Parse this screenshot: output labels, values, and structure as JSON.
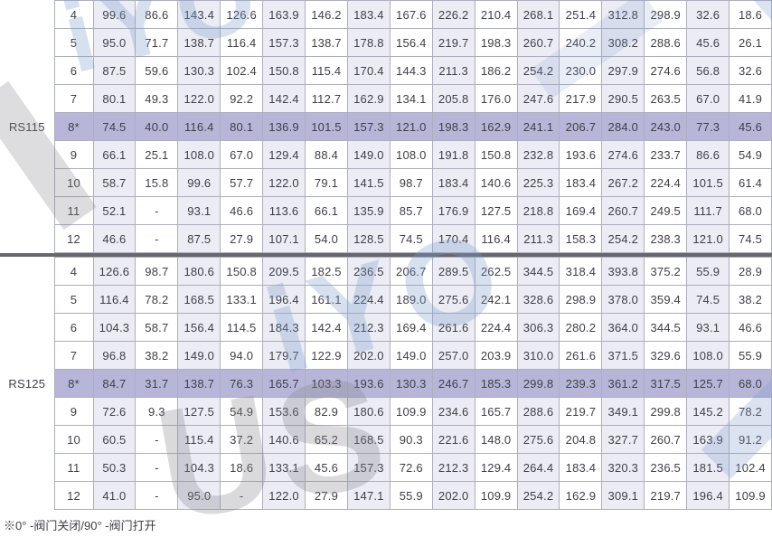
{
  "colors": {
    "border": "#adaebe",
    "shaded": "#ebecf4",
    "highlight": "#b7b6d9",
    "divider": "#67676c",
    "text": "#3f3f47",
    "wmBlue": "#7d9ccd",
    "wmGray": "#86868d"
  },
  "watermark": {
    "top_left": "iYO",
    "center": "iYO",
    "bottom_left": "US"
  },
  "footnote": {
    "text": "※0° -阀门关闭/90° -阀门打开"
  },
  "table": {
    "sections": [
      {
        "label": "RS115",
        "rows": [
          {
            "size": "4",
            "highlight": false,
            "values": [
              "99.6",
              "86.6",
              "143.4",
              "126.6",
              "163.9",
              "146.2",
              "183.4",
              "167.6",
              "226.2",
              "210.4",
              "268.1",
              "251.4",
              "312.8",
              "298.9",
              "32.6",
              "18.6"
            ]
          },
          {
            "size": "5",
            "highlight": false,
            "values": [
              "95.0",
              "71.7",
              "138.7",
              "116.4",
              "157.3",
              "138.7",
              "178.8",
              "156.4",
              "219.7",
              "198.3",
              "260.7",
              "240.2",
              "308.2",
              "288.6",
              "45.6",
              "26.1"
            ]
          },
          {
            "size": "6",
            "highlight": false,
            "values": [
              "87.5",
              "59.6",
              "130.3",
              "102.4",
              "150.8",
              "115.4",
              "170.4",
              "144.3",
              "211.3",
              "186.2",
              "254.2",
              "230.0",
              "297.9",
              "274.6",
              "56.8",
              "32.6"
            ]
          },
          {
            "size": "7",
            "highlight": false,
            "values": [
              "80.1",
              "49.3",
              "122.0",
              "92.2",
              "142.4",
              "112.7",
              "162.9",
              "134.1",
              "205.8",
              "176.0",
              "247.6",
              "217.9",
              "290.5",
              "263.5",
              "67.0",
              "41.9"
            ]
          },
          {
            "size": "8*",
            "highlight": true,
            "values": [
              "74.5",
              "40.0",
              "116.4",
              "80.1",
              "136.9",
              "101.5",
              "157.3",
              "121.0",
              "198.3",
              "162.9",
              "241.1",
              "206.7",
              "284.0",
              "243.0",
              "77.3",
              "45.6"
            ]
          },
          {
            "size": "9",
            "highlight": false,
            "values": [
              "66.1",
              "25.1",
              "108.0",
              "67.0",
              "129.4",
              "88.4",
              "149.0",
              "108.0",
              "191.8",
              "150.8",
              "232.8",
              "193.6",
              "274.6",
              "233.7",
              "86.6",
              "54.9"
            ]
          },
          {
            "size": "10",
            "highlight": false,
            "values": [
              "58.7",
              "15.8",
              "99.6",
              "57.7",
              "122.0",
              "79.1",
              "141.5",
              "98.7",
              "183.4",
              "140.6",
              "225.3",
              "183.4",
              "267.2",
              "224.4",
              "101.5",
              "61.4"
            ]
          },
          {
            "size": "11",
            "highlight": false,
            "values": [
              "52.1",
              "-",
              "93.1",
              "46.6",
              "113.6",
              "66.1",
              "135.9",
              "85.7",
              "176.9",
              "127.5",
              "218.8",
              "169.4",
              "260.7",
              "249.5",
              "111.7",
              "68.0"
            ]
          },
          {
            "size": "12",
            "highlight": false,
            "values": [
              "46.6",
              "-",
              "87.5",
              "27.9",
              "107.1",
              "54.0",
              "128.5",
              "74.5",
              "170.4",
              "116.4",
              "211.3",
              "158.3",
              "254.2",
              "238.3",
              "121.0",
              "74.5"
            ]
          }
        ]
      },
      {
        "label": "RS125",
        "rows": [
          {
            "size": "4",
            "highlight": false,
            "values": [
              "126.6",
              "98.7",
              "180.6",
              "150.8",
              "209.5",
              "182.5",
              "236.5",
              "206.7",
              "289.5",
              "262.5",
              "344.5",
              "318.4",
              "393.8",
              "375.2",
              "55.9",
              "28.9"
            ]
          },
          {
            "size": "5",
            "highlight": false,
            "values": [
              "116.4",
              "78.2",
              "168.5",
              "133.1",
              "196.4",
              "161.1",
              "224.4",
              "189.0",
              "275.6",
              "242.1",
              "328.6",
              "298.9",
              "378.0",
              "359.4",
              "74.5",
              "38.2"
            ]
          },
          {
            "size": "6",
            "highlight": false,
            "values": [
              "104.3",
              "58.7",
              "156.4",
              "114.5",
              "184.3",
              "142.4",
              "212.3",
              "169.4",
              "261.6",
              "224.4",
              "306.3",
              "280.2",
              "364.0",
              "344.5",
              "93.1",
              "46.6"
            ]
          },
          {
            "size": "7",
            "highlight": false,
            "values": [
              "96.8",
              "38.2",
              "149.0",
              "94.0",
              "179.7",
              "122.9",
              "202.0",
              "149.0",
              "257.0",
              "203.9",
              "310.0",
              "261.6",
              "371.5",
              "329.6",
              "108.0",
              "55.9"
            ]
          },
          {
            "size": "8*",
            "highlight": true,
            "values": [
              "84.7",
              "31.7",
              "138.7",
              "76.3",
              "165.7",
              "103.3",
              "193.6",
              "130.3",
              "246.7",
              "185.3",
              "299.8",
              "239.3",
              "361.2",
              "317.5",
              "125.7",
              "68.0"
            ]
          },
          {
            "size": "9",
            "highlight": false,
            "values": [
              "72.6",
              "9.3",
              "127.5",
              "54.9",
              "153.6",
              "82.9",
              "180.6",
              "109.9",
              "234.6",
              "165.7",
              "288.6",
              "219.7",
              "349.1",
              "299.8",
              "145.2",
              "78.2"
            ]
          },
          {
            "size": "10",
            "highlight": false,
            "values": [
              "60.5",
              "-",
              "115.4",
              "37.2",
              "140.6",
              "65.2",
              "168.5",
              "90.3",
              "221.6",
              "148.0",
              "275.6",
              "204.8",
              "327.7",
              "260.7",
              "163.9",
              "91.2"
            ]
          },
          {
            "size": "11",
            "highlight": false,
            "values": [
              "50.3",
              "-",
              "104.3",
              "18.6",
              "133.1",
              "45.6",
              "157.3",
              "72.6",
              "212.3",
              "129.4",
              "264.4",
              "183.4",
              "320.3",
              "236.5",
              "181.5",
              "102.4"
            ]
          },
          {
            "size": "12",
            "highlight": false,
            "values": [
              "41.0",
              "-",
              "95.0",
              "-",
              "122.0",
              "27.9",
              "147.1",
              "55.9",
              "202.0",
              "109.9",
              "254.2",
              "162.9",
              "309.1",
              "219.7",
              "196.4",
              "109.9"
            ]
          }
        ]
      }
    ]
  }
}
